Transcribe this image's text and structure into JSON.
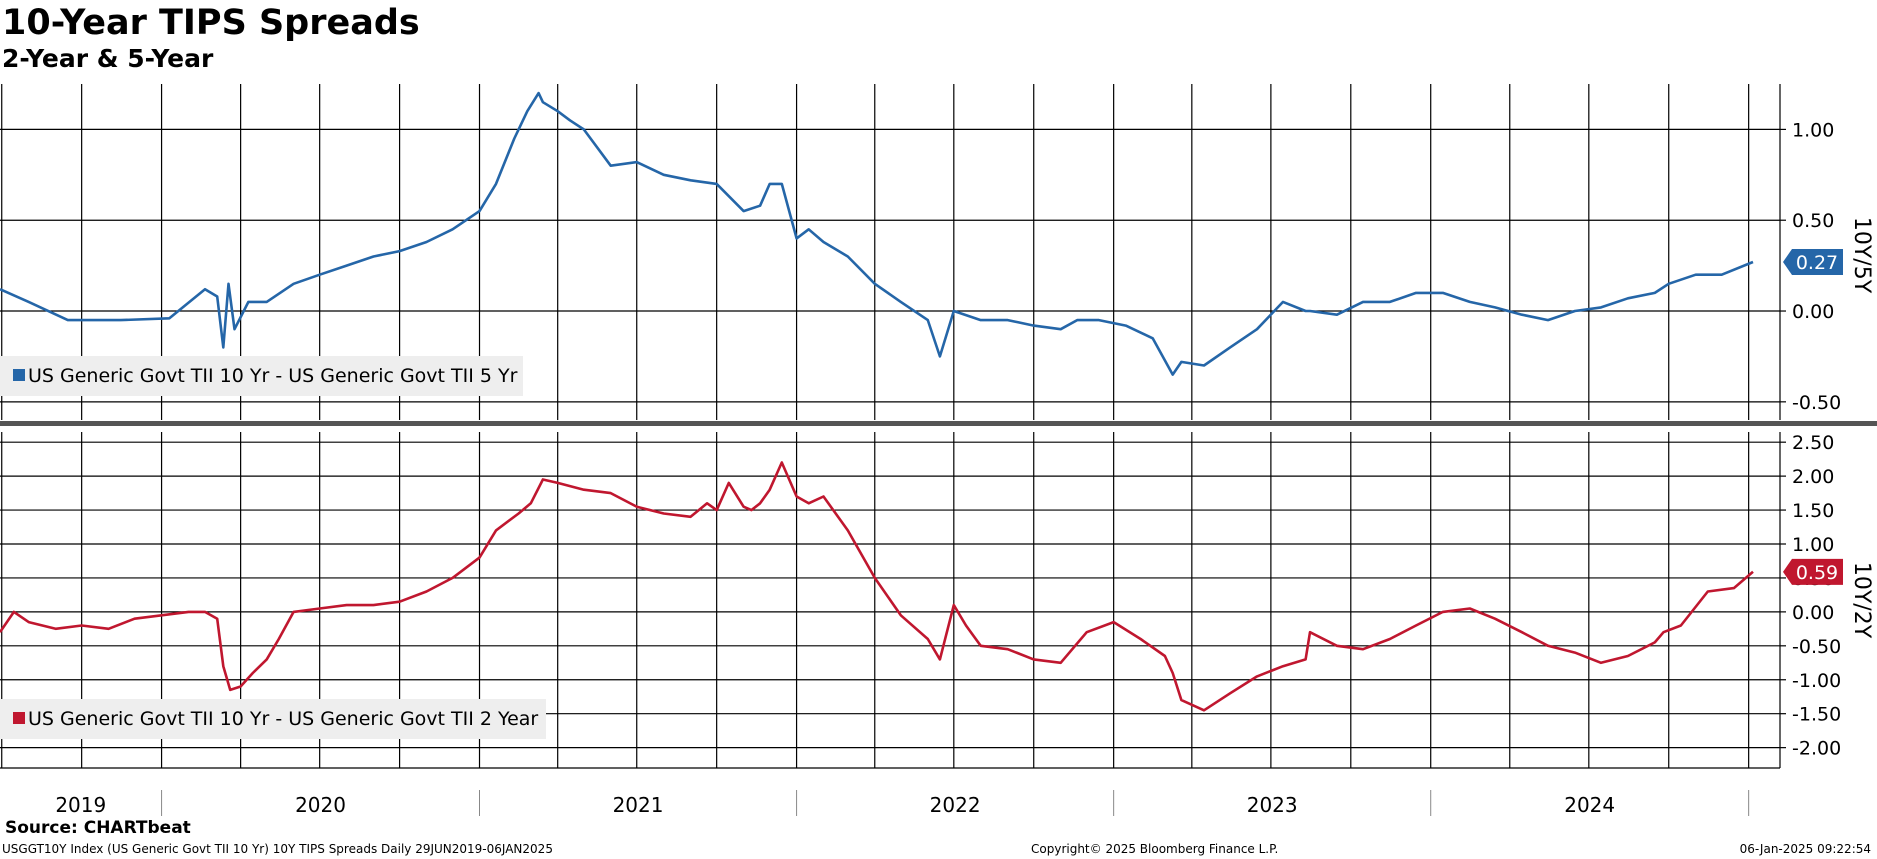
{
  "header": {
    "title": "10-Year TIPS Spreads",
    "subtitle": "2-Year & 5-Year"
  },
  "footer": {
    "source": "Source: CHARTbeat",
    "ticker_line": "USGGT10Y Index (US Generic Govt TII 10 Yr) 10Y TIPS Spreads  Daily 29JUN2019-06JAN2025",
    "copyright": "Copyright© 2025 Bloomberg Finance L.P.",
    "timestamp": "06-Jan-2025 09:22:54"
  },
  "colors": {
    "series_5y": "#2566a8",
    "series_2y": "#c0172f",
    "grid": "#000000"
  },
  "chart_data": [
    {
      "type": "line",
      "axis_side": "right",
      "axis_label": "10Y/5Y",
      "ylim": [
        -0.6,
        1.25
      ],
      "yticks": [
        1.0,
        0.5,
        0.0,
        -0.5
      ],
      "ytick_labels": [
        "1.00",
        "0.50",
        "0.00",
        "-0.50"
      ],
      "grid": true,
      "legend_position": "bottom-left",
      "last_value_label": "0.27",
      "series": [
        {
          "name": "US Generic Govt TII 10 Yr - US Generic Govt TII 5 Yr",
          "x": [
            "2019-06-29",
            "2019-08-01",
            "2019-09-15",
            "2019-10-01",
            "2019-11-15",
            "2020-01-10",
            "2020-02-20",
            "2020-03-05",
            "2020-03-12",
            "2020-03-18",
            "2020-03-25",
            "2020-04-10",
            "2020-05-01",
            "2020-06-01",
            "2020-07-01",
            "2020-08-01",
            "2020-09-01",
            "2020-10-01",
            "2020-11-01",
            "2020-12-01",
            "2021-01-01",
            "2021-01-20",
            "2021-02-10",
            "2021-02-25",
            "2021-03-10",
            "2021-03-15",
            "2021-04-01",
            "2021-04-15",
            "2021-05-01",
            "2021-06-01",
            "2021-07-01",
            "2021-08-01",
            "2021-09-01",
            "2021-10-01",
            "2021-11-01",
            "2021-11-20",
            "2021-12-01",
            "2021-12-15",
            "2022-01-01",
            "2022-01-15",
            "2022-02-01",
            "2022-03-01",
            "2022-04-01",
            "2022-05-01",
            "2022-06-01",
            "2022-06-15",
            "2022-07-01",
            "2022-08-01",
            "2022-09-01",
            "2022-10-01",
            "2022-11-01",
            "2022-11-20",
            "2022-12-15",
            "2023-01-15",
            "2023-02-15",
            "2023-03-10",
            "2023-03-20",
            "2023-04-15",
            "2023-05-15",
            "2023-06-15",
            "2023-07-15",
            "2023-08-10",
            "2023-08-15",
            "2023-09-15",
            "2023-10-15",
            "2023-11-15",
            "2023-12-15",
            "2024-01-15",
            "2024-02-15",
            "2024-03-15",
            "2024-04-15",
            "2024-05-15",
            "2024-06-15",
            "2024-07-15",
            "2024-08-15",
            "2024-09-15",
            "2024-10-01",
            "2024-11-01",
            "2024-12-01",
            "2025-01-06"
          ],
          "values": [
            0.12,
            0.05,
            -0.05,
            -0.05,
            -0.05,
            -0.04,
            0.12,
            0.08,
            -0.2,
            0.15,
            -0.1,
            0.05,
            0.05,
            0.15,
            0.2,
            0.25,
            0.3,
            0.33,
            0.38,
            0.45,
            0.55,
            0.7,
            0.95,
            1.1,
            1.2,
            1.15,
            1.1,
            1.05,
            1.0,
            0.8,
            0.82,
            0.75,
            0.72,
            0.7,
            0.55,
            0.58,
            0.7,
            0.7,
            0.4,
            0.45,
            0.38,
            0.3,
            0.15,
            0.05,
            -0.05,
            -0.25,
            0.0,
            -0.05,
            -0.05,
            -0.08,
            -0.1,
            -0.05,
            -0.05,
            -0.08,
            -0.15,
            -0.35,
            -0.28,
            -0.3,
            -0.2,
            -0.1,
            0.05,
            0.0,
            0.0,
            -0.02,
            0.05,
            0.05,
            0.1,
            0.1,
            0.05,
            0.02,
            -0.02,
            -0.05,
            0.0,
            0.02,
            0.07,
            0.1,
            0.15,
            0.2,
            0.2,
            0.27
          ]
        }
      ]
    },
    {
      "type": "line",
      "axis_side": "right",
      "axis_label": "10Y/2Y",
      "ylim": [
        -2.3,
        2.65
      ],
      "yticks": [
        2.5,
        2.0,
        1.5,
        1.0,
        0.5,
        0.0,
        -0.5,
        -1.0,
        -1.5,
        -2.0
      ],
      "ytick_labels": [
        "2.50",
        "2.00",
        "1.50",
        "1.00",
        "0.50",
        "0.00",
        "-0.50",
        "-1.00",
        "-1.50",
        "-2.00"
      ],
      "grid": true,
      "legend_position": "bottom-left",
      "last_value_label": "0.59",
      "series": [
        {
          "name": "US Generic Govt TII 10 Yr - US Generic Govt TII 2 Year",
          "x": [
            "2019-06-29",
            "2019-07-15",
            "2019-08-01",
            "2019-09-01",
            "2019-10-01",
            "2019-11-01",
            "2019-12-01",
            "2020-01-01",
            "2020-02-01",
            "2020-02-20",
            "2020-03-05",
            "2020-03-12",
            "2020-03-20",
            "2020-04-01",
            "2020-04-15",
            "2020-05-01",
            "2020-05-15",
            "2020-06-01",
            "2020-07-01",
            "2020-08-01",
            "2020-09-01",
            "2020-10-01",
            "2020-11-01",
            "2020-12-01",
            "2021-01-01",
            "2021-01-20",
            "2021-02-15",
            "2021-03-01",
            "2021-03-15",
            "2021-04-01",
            "2021-05-01",
            "2021-06-01",
            "2021-07-01",
            "2021-08-01",
            "2021-09-01",
            "2021-09-20",
            "2021-10-01",
            "2021-10-15",
            "2021-11-01",
            "2021-11-10",
            "2021-11-20",
            "2021-12-01",
            "2021-12-15",
            "2022-01-01",
            "2022-01-15",
            "2022-02-01",
            "2022-03-01",
            "2022-04-01",
            "2022-05-01",
            "2022-06-01",
            "2022-06-15",
            "2022-07-01",
            "2022-07-15",
            "2022-08-01",
            "2022-09-01",
            "2022-10-01",
            "2022-11-01",
            "2022-12-01",
            "2023-01-01",
            "2023-02-01",
            "2023-03-01",
            "2023-03-10",
            "2023-03-20",
            "2023-04-15",
            "2023-05-15",
            "2023-06-15",
            "2023-07-15",
            "2023-08-10",
            "2023-08-15",
            "2023-09-15",
            "2023-10-15",
            "2023-11-15",
            "2023-12-15",
            "2024-01-15",
            "2024-02-15",
            "2024-03-15",
            "2024-04-15",
            "2024-05-15",
            "2024-06-15",
            "2024-07-15",
            "2024-08-15",
            "2024-09-15",
            "2024-09-25",
            "2024-10-15",
            "2024-11-15",
            "2024-12-15",
            "2025-01-06"
          ],
          "values": [
            -0.3,
            0.0,
            -0.15,
            -0.25,
            -0.2,
            -0.25,
            -0.1,
            -0.05,
            0.0,
            0.0,
            -0.1,
            -0.8,
            -1.15,
            -1.1,
            -0.9,
            -0.7,
            -0.4,
            0.0,
            0.05,
            0.1,
            0.1,
            0.15,
            0.3,
            0.5,
            0.8,
            1.2,
            1.45,
            1.6,
            1.95,
            1.9,
            1.8,
            1.75,
            1.55,
            1.45,
            1.4,
            1.6,
            1.5,
            1.9,
            1.55,
            1.5,
            1.6,
            1.8,
            2.2,
            1.7,
            1.6,
            1.7,
            1.2,
            0.5,
            -0.05,
            -0.4,
            -0.7,
            0.1,
            -0.2,
            -0.5,
            -0.55,
            -0.7,
            -0.75,
            -0.3,
            -0.15,
            -0.4,
            -0.65,
            -0.9,
            -1.3,
            -1.45,
            -1.2,
            -0.95,
            -0.8,
            -0.7,
            -0.3,
            -0.5,
            -0.55,
            -0.4,
            -0.2,
            0.0,
            0.05,
            -0.1,
            -0.3,
            -0.5,
            -0.6,
            -0.75,
            -0.65,
            -0.45,
            -0.3,
            -0.2,
            0.3,
            0.35,
            0.59
          ]
        }
      ]
    }
  ],
  "xaxis": {
    "year_labels": [
      "2019",
      "2020",
      "2021",
      "2022",
      "2023",
      "2024"
    ]
  }
}
